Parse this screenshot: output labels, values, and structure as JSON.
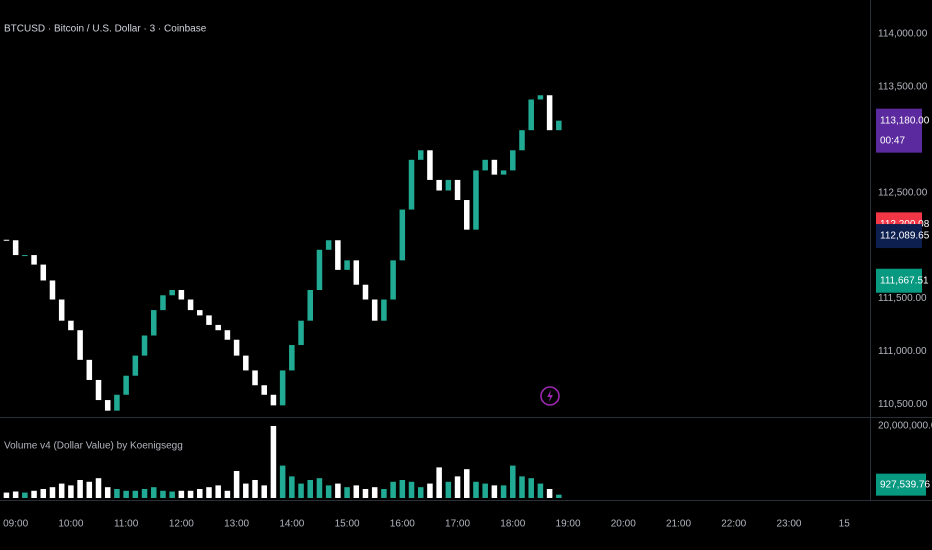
{
  "chart_data": [
    {
      "type": "candlestick",
      "title": "BTCUSD · Bitcoin / U.S. Dollar · 3 · Coinbase",
      "x": [
        "08:50",
        "09:00",
        "09:10",
        "09:20",
        "09:30",
        "09:40",
        "09:50",
        "10:00",
        "10:10",
        "10:20",
        "10:30",
        "10:40",
        "10:50",
        "11:00",
        "11:10",
        "11:20",
        "11:30",
        "11:40",
        "11:50",
        "12:00",
        "12:10",
        "12:20",
        "12:30",
        "12:40",
        "12:50",
        "13:00",
        "13:10",
        "13:20",
        "13:30",
        "13:40",
        "13:50",
        "14:00",
        "14:10",
        "14:20",
        "14:30",
        "14:40",
        "14:50",
        "15:00",
        "15:10",
        "15:20",
        "15:30",
        "15:40",
        "15:50",
        "16:00",
        "16:10",
        "16:20",
        "16:30",
        "16:40",
        "16:50",
        "17:00",
        "17:10",
        "17:20",
        "17:30",
        "17:40",
        "17:50",
        "18:00",
        "18:10",
        "18:20",
        "18:30",
        "18:40",
        "18:50"
      ],
      "close": [
        112050,
        111910,
        111910,
        111820,
        111670,
        111490,
        111290,
        111200,
        110920,
        110730,
        110540,
        110440,
        110590,
        110770,
        110960,
        111150,
        111390,
        111530,
        111580,
        111490,
        111390,
        111340,
        111250,
        111200,
        111110,
        110960,
        110820,
        110680,
        110590,
        110490,
        110820,
        111060,
        111290,
        111580,
        111960,
        112050,
        111770,
        111860,
        111630,
        111490,
        111290,
        111490,
        111860,
        112340,
        112810,
        112900,
        112620,
        112520,
        112620,
        112430,
        112150,
        112710,
        112810,
        112670,
        112710,
        112900,
        113090,
        113380,
        113420,
        113090,
        113180
      ],
      "up_color": "#22ab94",
      "down_color": "#ffffff",
      "xlim": [
        "08:43",
        "24:28"
      ],
      "xticks": [
        "09:00",
        "10:00",
        "11:00",
        "12:00",
        "13:00",
        "14:00",
        "15:00",
        "16:00",
        "17:00",
        "18:00",
        "19:00",
        "20:00",
        "21:00",
        "22:00",
        "23:00",
        {
          "value": "24:00",
          "label": "15"
        }
      ],
      "ylim": [
        110380,
        114320
      ],
      "yticks": [
        {
          "value": 110500,
          "label": "110,500.00"
        },
        {
          "value": 111000,
          "label": "111,000.00"
        },
        {
          "value": 111500,
          "label": "111,500.00"
        },
        {
          "value": 112500,
          "label": "112,500.00"
        },
        {
          "value": 113500,
          "label": "113,500.00"
        },
        {
          "value": 114000,
          "label": "114,000.00"
        }
      ],
      "price_labels": [
        {
          "value": 113180,
          "label": "113,180.00",
          "color": "#5b2a9e"
        },
        {
          "value": 112200.08,
          "label": "112,200.08",
          "color": "#f23645"
        },
        {
          "value": 112089.65,
          "label": "112,089.65",
          "color": "#0c1f4f"
        },
        {
          "value": 111667.51,
          "label": "111,667.51",
          "color": "#089981"
        }
      ],
      "countdown": "00:47"
    },
    {
      "type": "bar",
      "title": "Volume v4 (Dollar Value) by Koenigsegg",
      "values": [
        1500000,
        1800000,
        1500000,
        2000000,
        2500000,
        3000000,
        4000000,
        3500000,
        5000000,
        4500000,
        5500000,
        3000000,
        2500000,
        2000000,
        2000000,
        2500000,
        3000000,
        2000000,
        1800000,
        2000000,
        2000000,
        2500000,
        3000000,
        3500000,
        2000000,
        7500000,
        4000000,
        5000000,
        3500000,
        20000000,
        9000000,
        6000000,
        4000000,
        5000000,
        5500000,
        3500000,
        4000000,
        3000000,
        3500000,
        2500000,
        3000000,
        2500000,
        4500000,
        5000000,
        4500000,
        3000000,
        4000000,
        8500000,
        4500000,
        6000000,
        8000000,
        4500000,
        4000000,
        3500000,
        3500000,
        9000000,
        6000000,
        5500000,
        4000000,
        2500000,
        927539.76
      ],
      "ylim": [
        -560000,
        22220000
      ],
      "yticks": [
        {
          "value": 20000000,
          "label": "20,000,000.00"
        }
      ],
      "last_label": {
        "value": 927539.76,
        "label": "927,539.76",
        "color": "#089981"
      }
    }
  ]
}
